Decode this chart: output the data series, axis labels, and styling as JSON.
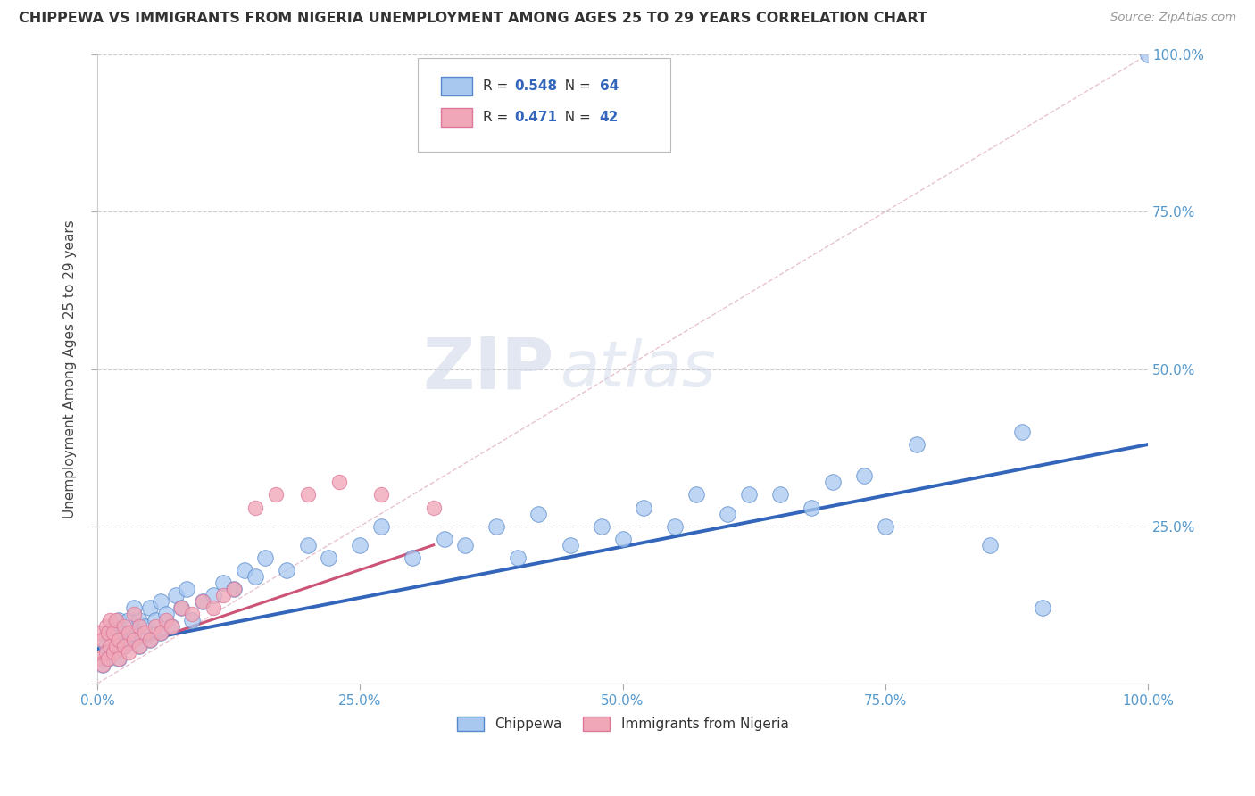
{
  "title": "CHIPPEWA VS IMMIGRANTS FROM NIGERIA UNEMPLOYMENT AMONG AGES 25 TO 29 YEARS CORRELATION CHART",
  "source": "Source: ZipAtlas.com",
  "ylabel": "Unemployment Among Ages 25 to 29 years",
  "xlim": [
    0,
    1.0
  ],
  "ylim": [
    0,
    1.0
  ],
  "xticks": [
    0.0,
    0.25,
    0.5,
    0.75,
    1.0
  ],
  "yticks": [
    0.0,
    0.25,
    0.5,
    0.75,
    1.0
  ],
  "xticklabels": [
    "0.0%",
    "25.0%",
    "50.0%",
    "75.0%",
    "100.0%"
  ],
  "yticklabels_right": [
    "",
    "25.0%",
    "50.0%",
    "75.0%",
    "100.0%"
  ],
  "chippewa_color": "#a8c8f0",
  "nigeria_color": "#f0a8b8",
  "chippewa_edge": "#5588cc",
  "nigeria_edge": "#dd7799",
  "trend_chippewa_color": "#3366bb",
  "trend_nigeria_color": "#cc5577",
  "diagonal_color": "#ddaabb",
  "R_chippewa": 0.548,
  "N_chippewa": 64,
  "R_nigeria": 0.471,
  "N_nigeria": 42,
  "watermark_zip": "ZIP",
  "watermark_atlas": "atlas",
  "chippewa_x": [
    0.005,
    0.008,
    0.01,
    0.01,
    0.015,
    0.015,
    0.02,
    0.02,
    0.025,
    0.025,
    0.03,
    0.03,
    0.035,
    0.035,
    0.04,
    0.04,
    0.045,
    0.05,
    0.05,
    0.055,
    0.06,
    0.06,
    0.065,
    0.07,
    0.075,
    0.08,
    0.085,
    0.09,
    0.1,
    0.11,
    0.12,
    0.13,
    0.14,
    0.15,
    0.16,
    0.18,
    0.2,
    0.22,
    0.25,
    0.27,
    0.3,
    0.33,
    0.35,
    0.38,
    0.4,
    0.42,
    0.45,
    0.48,
    0.5,
    0.52,
    0.55,
    0.57,
    0.6,
    0.62,
    0.65,
    0.68,
    0.7,
    0.73,
    0.75,
    0.78,
    0.85,
    0.88,
    0.9,
    1.0
  ],
  "chippewa_y": [
    0.03,
    0.06,
    0.04,
    0.08,
    0.05,
    0.09,
    0.04,
    0.1,
    0.06,
    0.08,
    0.07,
    0.1,
    0.08,
    0.12,
    0.06,
    0.1,
    0.09,
    0.07,
    0.12,
    0.1,
    0.08,
    0.13,
    0.11,
    0.09,
    0.14,
    0.12,
    0.15,
    0.1,
    0.13,
    0.14,
    0.16,
    0.15,
    0.18,
    0.17,
    0.2,
    0.18,
    0.22,
    0.2,
    0.22,
    0.25,
    0.2,
    0.23,
    0.22,
    0.25,
    0.2,
    0.27,
    0.22,
    0.25,
    0.23,
    0.28,
    0.25,
    0.3,
    0.27,
    0.3,
    0.3,
    0.28,
    0.32,
    0.33,
    0.25,
    0.38,
    0.22,
    0.4,
    0.12,
    1.0
  ],
  "nigeria_x": [
    0.0,
    0.0,
    0.005,
    0.005,
    0.008,
    0.008,
    0.01,
    0.01,
    0.012,
    0.012,
    0.015,
    0.015,
    0.018,
    0.018,
    0.02,
    0.02,
    0.025,
    0.025,
    0.03,
    0.03,
    0.035,
    0.035,
    0.04,
    0.04,
    0.045,
    0.05,
    0.055,
    0.06,
    0.065,
    0.07,
    0.08,
    0.09,
    0.1,
    0.11,
    0.12,
    0.13,
    0.15,
    0.17,
    0.2,
    0.23,
    0.27,
    0.32
  ],
  "nigeria_y": [
    0.04,
    0.08,
    0.03,
    0.07,
    0.05,
    0.09,
    0.04,
    0.08,
    0.06,
    0.1,
    0.05,
    0.08,
    0.06,
    0.1,
    0.04,
    0.07,
    0.06,
    0.09,
    0.05,
    0.08,
    0.07,
    0.11,
    0.06,
    0.09,
    0.08,
    0.07,
    0.09,
    0.08,
    0.1,
    0.09,
    0.12,
    0.11,
    0.13,
    0.12,
    0.14,
    0.15,
    0.28,
    0.3,
    0.3,
    0.32,
    0.3,
    0.28
  ],
  "trend_chip_x0": 0.0,
  "trend_chip_y0": 0.055,
  "trend_chip_x1": 1.0,
  "trend_chip_y1": 0.38,
  "trend_nig_x0": 0.0,
  "trend_nig_y0": 0.04,
  "trend_nig_x1": 0.32,
  "trend_nig_y1": 0.22
}
